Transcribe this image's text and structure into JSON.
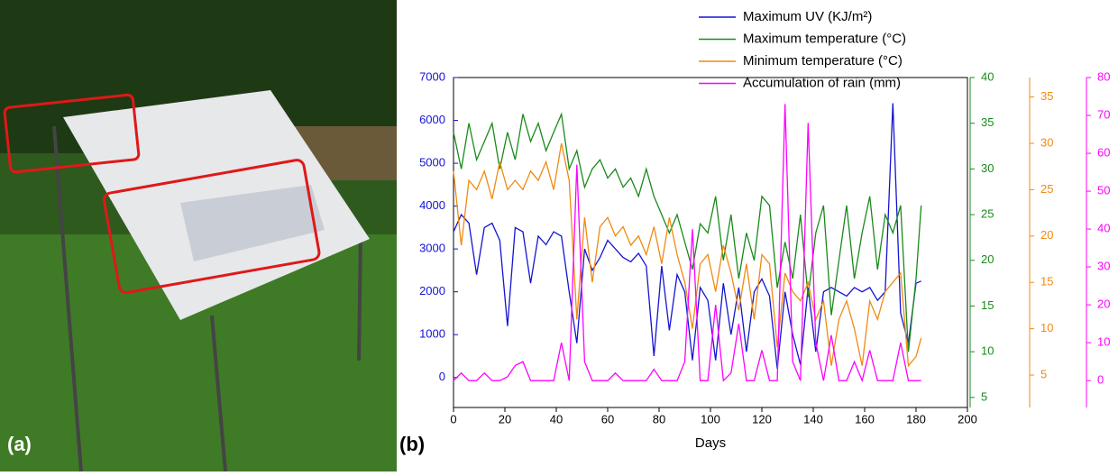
{
  "panel_labels": [
    "(a)",
    "(b)"
  ],
  "chart_data": {
    "type": "line",
    "xlabel": "Days",
    "xlim": [
      0,
      200
    ],
    "xticks": [
      0,
      20,
      40,
      60,
      80,
      100,
      120,
      140,
      160,
      180,
      200
    ],
    "ylim": [
      -700,
      7000
    ],
    "yticks": [
      0,
      1000,
      2000,
      3000,
      4000,
      5000,
      6000,
      7000
    ],
    "y2lim": [
      3.9,
      40
    ],
    "y2ticks": [
      5,
      10,
      15,
      20,
      25,
      30,
      35,
      40
    ],
    "y3lim": [
      1.5,
      37.1
    ],
    "y3ticks": [
      5,
      10,
      15,
      20,
      25,
      30,
      35
    ],
    "y4lim": [
      -7.1,
      80
    ],
    "y4ticks": [
      0,
      10,
      20,
      30,
      40,
      50,
      60,
      70,
      80
    ],
    "x": [
      0,
      3,
      6,
      9,
      12,
      15,
      18,
      21,
      24,
      27,
      30,
      33,
      36,
      39,
      42,
      45,
      48,
      51,
      54,
      57,
      60,
      63,
      66,
      69,
      72,
      75,
      78,
      81,
      84,
      87,
      90,
      93,
      96,
      99,
      102,
      105,
      108,
      111,
      114,
      117,
      120,
      123,
      126,
      129,
      132,
      135,
      138,
      141,
      144,
      147,
      150,
      153,
      156,
      159,
      162,
      165,
      168,
      171,
      174,
      177,
      180,
      182
    ],
    "series": [
      {
        "name": "Maximum UV (KJ/m²)",
        "color": "#1414d2",
        "axis": "y",
        "values": [
          3400,
          3800,
          3600,
          2400,
          3500,
          3600,
          3200,
          1200,
          3500,
          3400,
          2200,
          3300,
          3100,
          3400,
          3300,
          2000,
          800,
          3000,
          2500,
          2800,
          3200,
          3000,
          2800,
          2700,
          2900,
          2600,
          500,
          2600,
          1100,
          2400,
          2000,
          400,
          2100,
          1800,
          400,
          2200,
          1000,
          2100,
          600,
          2000,
          2300,
          1900,
          200,
          2000,
          1000,
          300,
          2100,
          600,
          2000,
          2100,
          2000,
          1900,
          2100,
          2000,
          2100,
          1800,
          2000,
          6400,
          1500,
          800,
          2200,
          2250
        ]
      },
      {
        "name": "Maximum temperature (°C)",
        "color": "#1a8a1a",
        "axis": "y2",
        "values": [
          34,
          30,
          35,
          31,
          33,
          35,
          30,
          34,
          31,
          36,
          33,
          35,
          32,
          34,
          36,
          30,
          32,
          28,
          30,
          31,
          29,
          30,
          28,
          29,
          27,
          30,
          27,
          25,
          23,
          25,
          22,
          19,
          24,
          23,
          27,
          20,
          25,
          18,
          23,
          20,
          27,
          26,
          17,
          22,
          18,
          25,
          16,
          23,
          26,
          14,
          20,
          26,
          18,
          23,
          27,
          19,
          25,
          23,
          26,
          10,
          18,
          26
        ]
      },
      {
        "name": "Minimum temperature (°C)",
        "color": "#f08a10",
        "axis": "y3",
        "values": [
          27,
          19,
          26,
          25,
          27,
          24,
          28,
          25,
          26,
          25,
          27,
          26,
          28,
          25,
          30,
          26,
          11,
          22,
          15,
          21,
          22,
          20,
          21,
          19,
          20,
          18,
          21,
          17,
          22,
          18,
          15,
          10,
          17,
          18,
          14,
          19,
          16,
          12,
          17,
          11,
          18,
          17,
          8,
          16,
          14,
          13,
          15,
          11,
          13,
          6,
          11,
          13,
          10,
          6,
          13,
          11,
          14,
          15,
          16,
          6,
          7,
          9
        ]
      },
      {
        "name": "Accumulation of rain (mm)",
        "color": "#ff00ff",
        "axis": "y4",
        "values": [
          0,
          2,
          0,
          0,
          2,
          0,
          0,
          1,
          4,
          5,
          0,
          0,
          0,
          0,
          10,
          0,
          57,
          5,
          0,
          0,
          0,
          2,
          0,
          0,
          0,
          0,
          3,
          0,
          0,
          0,
          5,
          40,
          0,
          0,
          20,
          0,
          2,
          15,
          0,
          0,
          8,
          0,
          0,
          73,
          5,
          0,
          68,
          10,
          0,
          12,
          0,
          0,
          5,
          0,
          8,
          0,
          0,
          0,
          10,
          0,
          0,
          0
        ]
      }
    ]
  }
}
